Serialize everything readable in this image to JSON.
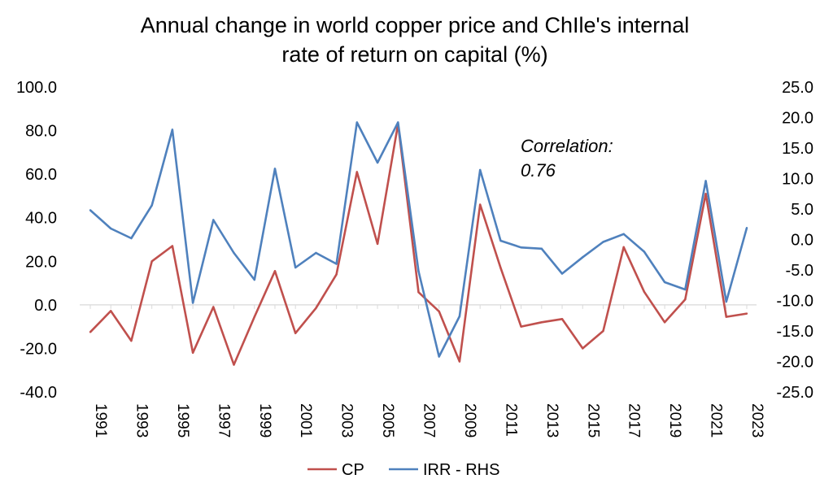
{
  "chart_data": {
    "type": "line",
    "title": "Annual change in world copper price and ChIle's internal rate of return on capital (%)",
    "title_lines": [
      "Annual change in world copper price and ChIle's internal",
      "rate of return on capital (%)"
    ],
    "years": [
      1991,
      1992,
      1993,
      1994,
      1995,
      1996,
      1997,
      1998,
      1999,
      2000,
      2001,
      2002,
      2003,
      2004,
      2005,
      2006,
      2007,
      2008,
      2009,
      2010,
      2011,
      2012,
      2013,
      2014,
      2015,
      2016,
      2017,
      2018,
      2019,
      2020,
      2021,
      2022,
      2023
    ],
    "x_tick_labels": [
      "1991",
      "1993",
      "1995",
      "1997",
      "1999",
      "2001",
      "2003",
      "2005",
      "2007",
      "2009",
      "2011",
      "2013",
      "2015",
      "2017",
      "2019",
      "2021",
      "2023"
    ],
    "left_axis": {
      "ylim": [
        -40,
        100
      ],
      "tick_labels": [
        "100.0",
        "80.0",
        "60.0",
        "40.0",
        "20.0",
        "0.0",
        "-20.0",
        "-40.0"
      ]
    },
    "right_axis": {
      "ylim": [
        -25,
        25
      ],
      "tick_labels": [
        "25.0",
        "20.0",
        "15.0",
        "10.0",
        "5.0",
        "0.0",
        "-5.0",
        "-10.0",
        "-15.0",
        "-20.0",
        "-25.0"
      ]
    },
    "series": [
      {
        "name": "CP",
        "axis": "left",
        "color": "#c0504d",
        "values": [
          -12.5,
          -2.8,
          -16.5,
          20.0,
          27.0,
          -22.0,
          -1.0,
          -27.5,
          -5.5,
          15.5,
          -13.0,
          -1.5,
          14.0,
          61.0,
          28.0,
          83.0,
          5.8,
          -3.0,
          -26.0,
          46.0,
          17.0,
          -10.0,
          -8.0,
          -6.5,
          -20.0,
          -12.0,
          26.5,
          6.0,
          -8.0,
          2.5,
          51.0,
          -5.5,
          -4.0
        ]
      },
      {
        "name": "IRR - RHS",
        "axis": "right",
        "color": "#4f81bd",
        "values": [
          4.8,
          1.8,
          0.2,
          5.6,
          18.0,
          -10.4,
          3.2,
          -2.2,
          -6.6,
          11.6,
          -4.6,
          -2.2,
          -4.0,
          19.2,
          12.6,
          19.2,
          -5.2,
          -19.2,
          -12.6,
          11.4,
          -0.2,
          -1.3,
          -1.5,
          -5.6,
          -2.9,
          -0.4,
          0.9,
          -2.0,
          -7.0,
          -8.2,
          9.6,
          -10.2,
          1.9
        ]
      }
    ],
    "annotation": [
      "Correlation:",
      "0.76"
    ],
    "legend_position": "bottom-center"
  }
}
